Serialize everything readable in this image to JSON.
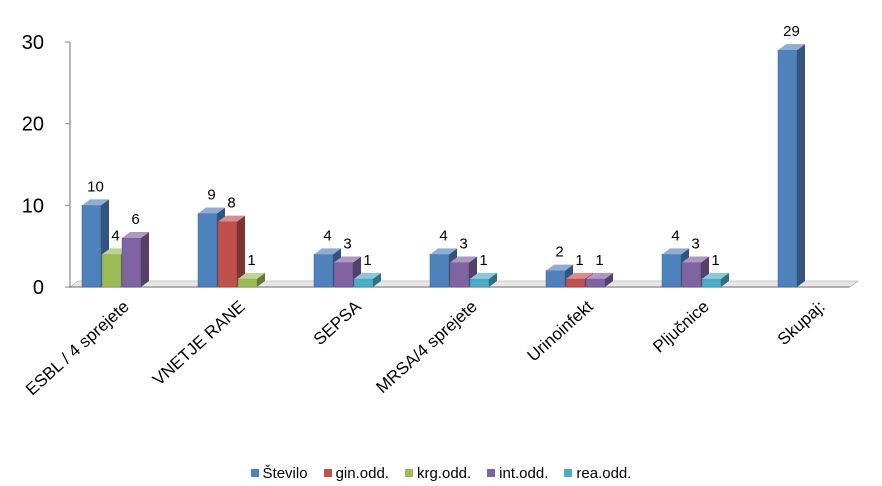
{
  "chart_data": {
    "type": "bar",
    "style": "3d-clustered-column",
    "title": "",
    "xlabel": "",
    "ylabel": "",
    "ylim": [
      0,
      30
    ],
    "yticks": [
      0,
      10,
      20,
      30
    ],
    "grid": false,
    "legend_position": "bottom",
    "categories": [
      "ESBL / 4 sprejete",
      "VNETJE RANE",
      "SEPSA",
      "MRSA/4 sprejete",
      "Urinoinfekt",
      "Pljučnice",
      "Skupaj:"
    ],
    "series": [
      {
        "name": "Število",
        "color": "#4F81BD",
        "values": [
          10,
          9,
          4,
          4,
          2,
          4,
          29
        ]
      },
      {
        "name": "gin.odd.",
        "color": "#C0504D",
        "values": [
          null,
          8,
          null,
          null,
          1,
          null,
          null
        ]
      },
      {
        "name": "krg.odd.",
        "color": "#9BBB59",
        "values": [
          4,
          1,
          null,
          null,
          null,
          null,
          null
        ]
      },
      {
        "name": "int.odd.",
        "color": "#8064A2",
        "values": [
          6,
          null,
          3,
          3,
          1,
          3,
          null
        ]
      },
      {
        "name": "rea.odd.",
        "color": "#4BACC6",
        "values": [
          null,
          null,
          1,
          1,
          null,
          1,
          null
        ]
      }
    ],
    "data_labels": [
      {
        "category": 0,
        "series": 0,
        "text": "10"
      },
      {
        "category": 0,
        "series": 2,
        "text": "4"
      },
      {
        "category": 0,
        "series": 3,
        "text": "6"
      },
      {
        "category": 1,
        "series": 0,
        "text": "9"
      },
      {
        "category": 1,
        "series": 1,
        "text": "8"
      },
      {
        "category": 1,
        "series": 2,
        "text": "1"
      },
      {
        "category": 2,
        "series": 0,
        "text": "4"
      },
      {
        "category": 2,
        "series": 3,
        "text": "3"
      },
      {
        "category": 2,
        "series": 4,
        "text": "1"
      },
      {
        "category": 3,
        "series": 0,
        "text": "4"
      },
      {
        "category": 3,
        "series": 3,
        "text": "3"
      },
      {
        "category": 3,
        "series": 4,
        "text": "1"
      },
      {
        "category": 4,
        "series": 0,
        "text": "2"
      },
      {
        "category": 4,
        "series": 1,
        "text": "1"
      },
      {
        "category": 4,
        "series": 3,
        "text": "1"
      },
      {
        "category": 5,
        "series": 0,
        "text": "4"
      },
      {
        "category": 5,
        "series": 3,
        "text": "3"
      },
      {
        "category": 5,
        "series": 4,
        "text": "1"
      },
      {
        "category": 6,
        "series": 0,
        "text": "29"
      }
    ]
  }
}
